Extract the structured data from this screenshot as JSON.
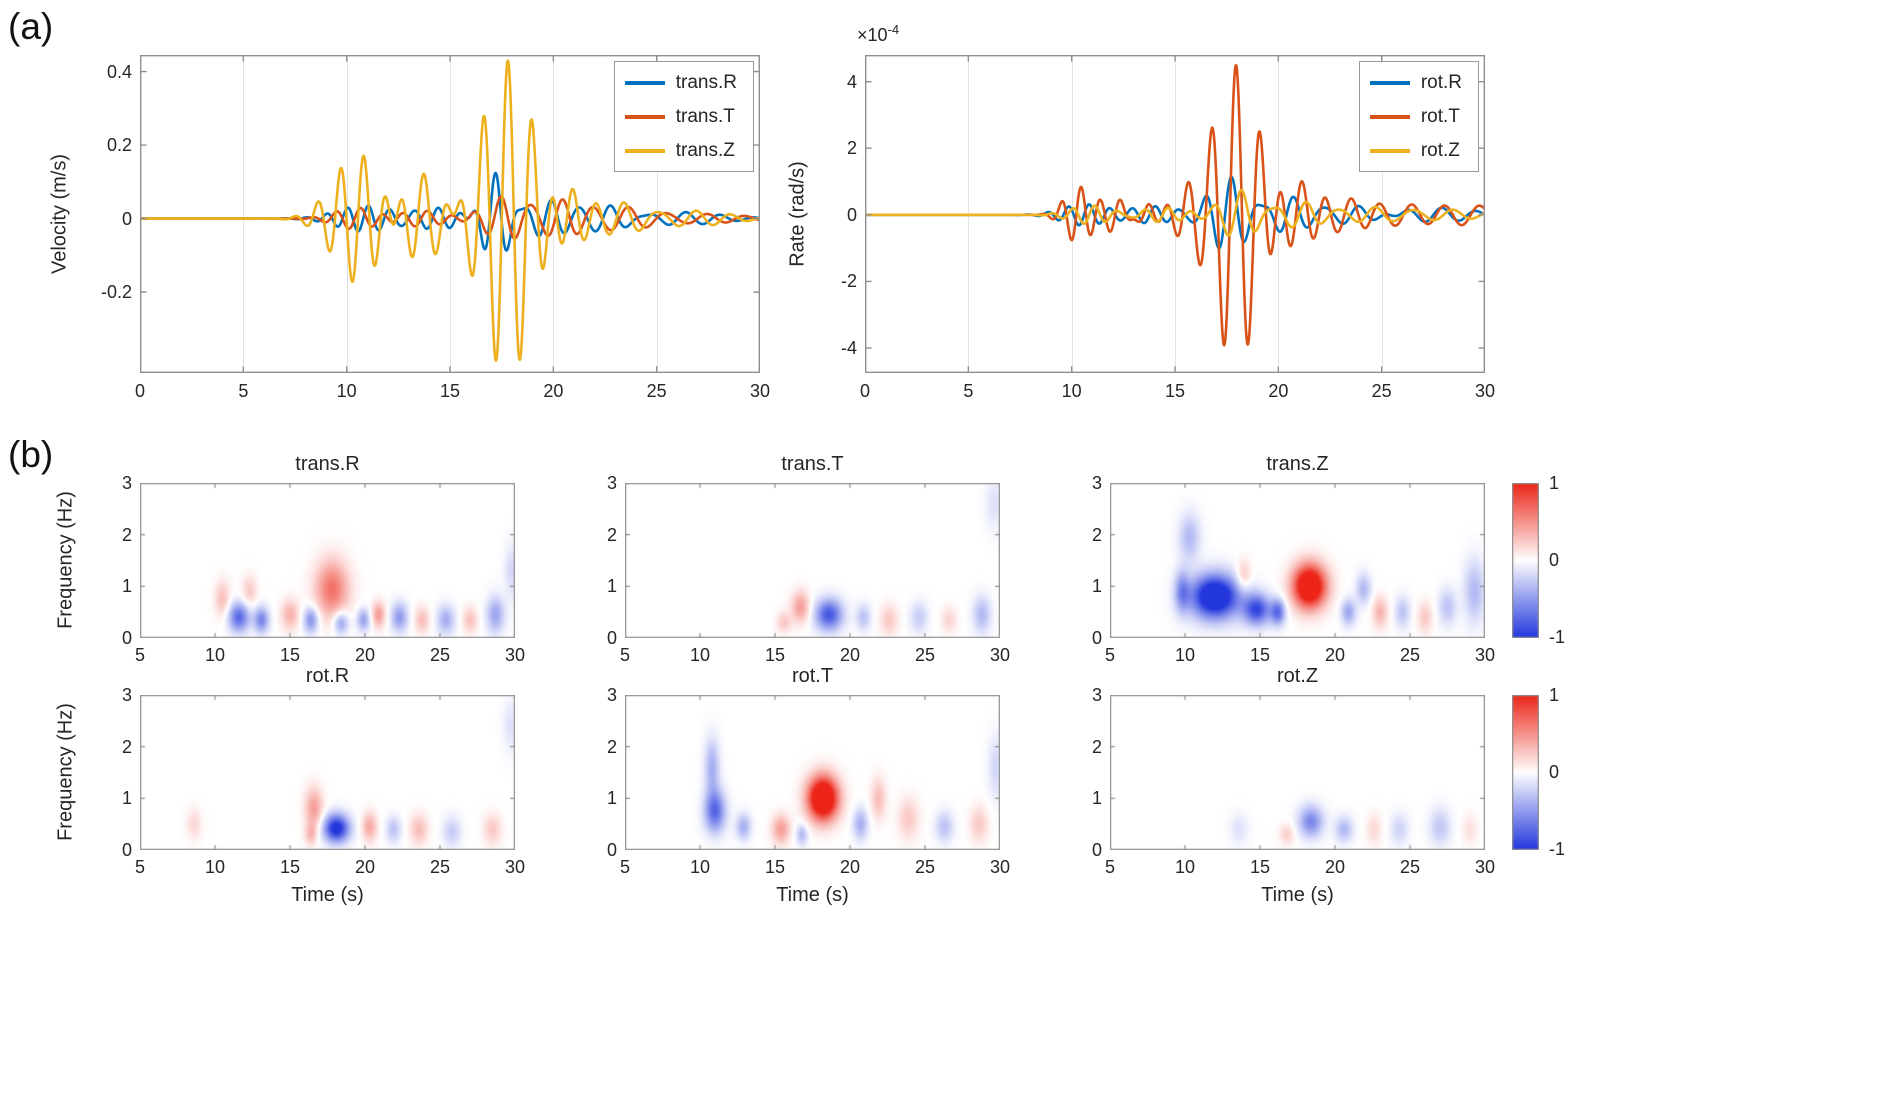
{
  "panels": {
    "a": "(a)",
    "b": "(b)"
  },
  "colors": {
    "axis": "#8f8f8f",
    "grid": "#e2e2e2",
    "text": "#262626",
    "heat_red": "#ec2518",
    "heat_blue": "#2337dd",
    "series_blue": "#0072BD",
    "series_orange": "#D95319",
    "series_yellow": "#EDB120"
  },
  "colorbar": {
    "ticks": [
      "1",
      "0",
      "-1"
    ],
    "range": [
      -1,
      1
    ]
  },
  "chart_data": [
    {
      "type": "line",
      "id": "velocity",
      "ylabel": "Velocity (m/s)",
      "xlim": [
        0,
        30
      ],
      "ylim": [
        -0.42,
        0.445
      ],
      "xticks": [
        0,
        5,
        10,
        15,
        20,
        25,
        30
      ],
      "yticks": [
        -0.2,
        0,
        0.2,
        0.4
      ],
      "grid": "vertical",
      "legend_position": "top-right",
      "series": [
        {
          "name": "trans.R",
          "color": "#0072BD",
          "packets": [
            {
              "t0": 10.8,
              "A": 0.035,
              "f": 1.0,
              "w": 1.8,
              "ph": 0
            },
            {
              "t0": 14.3,
              "A": 0.03,
              "f": 0.9,
              "w": 1.8,
              "ph": 0.8
            },
            {
              "t0": 17.2,
              "A": 0.125,
              "f": 0.9,
              "w": 0.9,
              "ph": 1.5708
            },
            {
              "t0": 19.6,
              "A": 0.05,
              "f": 0.8,
              "w": 1.4,
              "ph": 0
            },
            {
              "t0": 22.5,
              "A": 0.035,
              "f": 0.7,
              "w": 1.6,
              "ph": 0.5
            },
            {
              "t0": 26.0,
              "A": 0.018,
              "f": 0.6,
              "w": 2.8,
              "ph": 0
            }
          ]
        },
        {
          "name": "trans.T",
          "color": "#D95319",
          "packets": [
            {
              "t0": 10.5,
              "A": 0.03,
              "f": 0.85,
              "w": 1.5,
              "ph": 0.6
            },
            {
              "t0": 13.6,
              "A": 0.022,
              "f": 0.8,
              "w": 1.6,
              "ph": 0
            },
            {
              "t0": 17.6,
              "A": 0.06,
              "f": 0.75,
              "w": 1.3,
              "ph": 2.2
            },
            {
              "t0": 20.2,
              "A": 0.05,
              "f": 0.7,
              "w": 1.4,
              "ph": 0.4
            },
            {
              "t0": 23.2,
              "A": 0.03,
              "f": 0.6,
              "w": 2.0,
              "ph": 0
            },
            {
              "t0": 27.0,
              "A": 0.013,
              "f": 0.55,
              "w": 3.0,
              "ph": 0
            }
          ]
        },
        {
          "name": "trans.Z",
          "color": "#EDB120",
          "packets": [
            {
              "t0": 10.6,
              "A": 0.18,
              "f": 0.9,
              "w": 1.7,
              "ph": 0.3
            },
            {
              "t0": 13.6,
              "A": 0.13,
              "f": 0.85,
              "w": 1.6,
              "ph": 0.9
            },
            {
              "t0": 17.8,
              "A": 0.43,
              "f": 0.85,
              "w": 1.8,
              "ph": 1.5708
            },
            {
              "t0": 20.6,
              "A": 0.1,
              "f": 0.8,
              "w": 1.2,
              "ph": 0
            },
            {
              "t0": 23.2,
              "A": 0.04,
              "f": 0.7,
              "w": 1.6,
              "ph": 0.7
            },
            {
              "t0": 26.5,
              "A": 0.022,
              "f": 0.6,
              "w": 2.6,
              "ph": 0
            }
          ]
        }
      ]
    },
    {
      "type": "line",
      "id": "rate",
      "ylabel": "Rate (rad/s)",
      "exp_base": "×10",
      "exp_power": "-4",
      "xlim": [
        0,
        30
      ],
      "ylim": [
        -4.75,
        4.8
      ],
      "xticks": [
        0,
        5,
        10,
        15,
        20,
        25,
        30
      ],
      "yticks": [
        -4,
        -2,
        0,
        2,
        4
      ],
      "grid": "vertical",
      "legend_position": "top-right",
      "series": [
        {
          "name": "rot.R",
          "color": "#0072BD",
          "packets": [
            {
              "t0": 10.6,
              "A": 0.32,
              "f": 1.0,
              "w": 1.5,
              "ph": 0
            },
            {
              "t0": 13.9,
              "A": 0.26,
              "f": 0.9,
              "w": 1.5,
              "ph": 0.7
            },
            {
              "t0": 17.6,
              "A": 1.15,
              "f": 0.8,
              "w": 1.3,
              "ph": 0.9
            },
            {
              "t0": 20.4,
              "A": 0.55,
              "f": 0.75,
              "w": 1.4,
              "ph": 0
            },
            {
              "t0": 23.6,
              "A": 0.3,
              "f": 0.65,
              "w": 1.8,
              "ph": 0.4
            },
            {
              "t0": 27.5,
              "A": 0.22,
              "f": 0.6,
              "w": 2.6,
              "ph": 0
            }
          ]
        },
        {
          "name": "rot.T",
          "color": "#D95319",
          "packets": [
            {
              "t0": 10.3,
              "A": 0.85,
              "f": 1.05,
              "w": 0.9,
              "ph": 0.5
            },
            {
              "t0": 12.1,
              "A": 0.5,
              "f": 1.0,
              "w": 0.9,
              "ph": 0
            },
            {
              "t0": 13.6,
              "A": 0.35,
              "f": 0.95,
              "w": 0.8,
              "ph": 0.6
            },
            {
              "t0": 15.4,
              "A": 0.55,
              "f": 0.9,
              "w": 0.9,
              "ph": 0
            },
            {
              "t0": 17.95,
              "A": 4.5,
              "f": 0.85,
              "w": 1.55,
              "ph": 1.5708
            },
            {
              "t0": 20.9,
              "A": 1.1,
              "f": 0.8,
              "w": 1.2,
              "ph": 0.3
            },
            {
              "t0": 23.2,
              "A": 0.5,
              "f": 0.7,
              "w": 1.6,
              "ph": 0
            },
            {
              "t0": 26.2,
              "A": 0.3,
              "f": 0.6,
              "w": 2.0,
              "ph": 0.5
            },
            {
              "t0": 29.3,
              "A": 0.28,
              "f": 0.55,
              "w": 1.8,
              "ph": 0
            }
          ]
        },
        {
          "name": "rot.Z",
          "color": "#EDB120",
          "packets": [
            {
              "t0": 10.9,
              "A": 0.28,
              "f": 0.95,
              "w": 1.4,
              "ph": 0.3
            },
            {
              "t0": 14.4,
              "A": 0.22,
              "f": 0.9,
              "w": 1.5,
              "ph": 0
            },
            {
              "t0": 18.1,
              "A": 0.75,
              "f": 0.75,
              "w": 1.2,
              "ph": 1.0
            },
            {
              "t0": 21.0,
              "A": 0.4,
              "f": 0.7,
              "w": 1.4,
              "ph": 0
            },
            {
              "t0": 24.4,
              "A": 0.22,
              "f": 0.6,
              "w": 1.8,
              "ph": 0.5
            },
            {
              "t0": 28.0,
              "A": 0.16,
              "f": 0.55,
              "w": 2.4,
              "ph": 0
            }
          ]
        }
      ]
    },
    {
      "type": "heatmap",
      "title": "trans.R",
      "ylabel": "Frequency (Hz)",
      "xlim": [
        5,
        30
      ],
      "ylim": [
        0,
        3
      ],
      "xticks": [
        5,
        10,
        15,
        20,
        25,
        30
      ],
      "yticks": [
        0,
        1,
        2,
        3
      ],
      "colormap": "blue-white-red",
      "clim": [
        -1,
        1
      ],
      "blobs": [
        {
          "t": 10.5,
          "f": 0.75,
          "st": 0.5,
          "sf": 0.35,
          "a": 0.3
        },
        {
          "t": 11.6,
          "f": 0.4,
          "st": 0.7,
          "sf": 0.28,
          "a": -0.75
        },
        {
          "t": 13.1,
          "f": 0.35,
          "st": 0.5,
          "sf": 0.25,
          "a": -0.6
        },
        {
          "t": 12.3,
          "f": 0.9,
          "st": 0.5,
          "sf": 0.3,
          "a": 0.25
        },
        {
          "t": 15.0,
          "f": 0.45,
          "st": 0.6,
          "sf": 0.3,
          "a": 0.35
        },
        {
          "t": 16.4,
          "f": 0.35,
          "st": 0.5,
          "sf": 0.25,
          "a": -0.55
        },
        {
          "t": 17.8,
          "f": 0.95,
          "st": 1.1,
          "sf": 0.55,
          "a": 0.65
        },
        {
          "t": 18.4,
          "f": 0.3,
          "st": 0.5,
          "sf": 0.22,
          "a": -0.5
        },
        {
          "t": 19.9,
          "f": 0.35,
          "st": 0.45,
          "sf": 0.22,
          "a": -0.45
        },
        {
          "t": 20.9,
          "f": 0.45,
          "st": 0.45,
          "sf": 0.25,
          "a": 0.45
        },
        {
          "t": 22.3,
          "f": 0.4,
          "st": 0.55,
          "sf": 0.28,
          "a": -0.5
        },
        {
          "t": 23.8,
          "f": 0.35,
          "st": 0.5,
          "sf": 0.25,
          "a": 0.3
        },
        {
          "t": 25.4,
          "f": 0.35,
          "st": 0.6,
          "sf": 0.28,
          "a": -0.4
        },
        {
          "t": 27.0,
          "f": 0.35,
          "st": 0.5,
          "sf": 0.25,
          "a": 0.28
        },
        {
          "t": 28.7,
          "f": 0.45,
          "st": 0.6,
          "sf": 0.35,
          "a": -0.45
        },
        {
          "t": 29.8,
          "f": 1.3,
          "st": 0.5,
          "sf": 0.5,
          "a": -0.2
        }
      ]
    },
    {
      "type": "heatmap",
      "title": "trans.T",
      "xlim": [
        5,
        30
      ],
      "ylim": [
        0,
        3
      ],
      "xticks": [
        5,
        10,
        15,
        20,
        25,
        30
      ],
      "yticks": [
        0,
        1,
        2,
        3
      ],
      "colormap": "blue-white-red",
      "clim": [
        -1,
        1
      ],
      "blobs": [
        {
          "t": 15.6,
          "f": 0.3,
          "st": 0.5,
          "sf": 0.2,
          "a": 0.25
        },
        {
          "t": 16.7,
          "f": 0.6,
          "st": 0.6,
          "sf": 0.3,
          "a": 0.45
        },
        {
          "t": 18.6,
          "f": 0.45,
          "st": 0.9,
          "sf": 0.3,
          "a": -0.85
        },
        {
          "t": 20.9,
          "f": 0.4,
          "st": 0.5,
          "sf": 0.25,
          "a": -0.3
        },
        {
          "t": 22.6,
          "f": 0.35,
          "st": 0.6,
          "sf": 0.3,
          "a": 0.25
        },
        {
          "t": 24.6,
          "f": 0.4,
          "st": 0.6,
          "sf": 0.3,
          "a": -0.25
        },
        {
          "t": 26.6,
          "f": 0.35,
          "st": 0.5,
          "sf": 0.25,
          "a": 0.2
        },
        {
          "t": 28.8,
          "f": 0.45,
          "st": 0.6,
          "sf": 0.35,
          "a": -0.35
        },
        {
          "t": 29.6,
          "f": 2.6,
          "st": 0.6,
          "sf": 0.5,
          "a": -0.15
        }
      ]
    },
    {
      "type": "heatmap",
      "title": "trans.Z",
      "xlim": [
        5,
        30
      ],
      "ylim": [
        0,
        3
      ],
      "xticks": [
        5,
        10,
        15,
        20,
        25,
        30
      ],
      "yticks": [
        0,
        1,
        2,
        3
      ],
      "colormap": "blue-white-red",
      "clim": [
        -1,
        1
      ],
      "blobs": [
        {
          "t": 9.8,
          "f": 0.9,
          "st": 0.5,
          "sf": 0.4,
          "a": -0.5
        },
        {
          "t": 12.0,
          "f": 0.8,
          "st": 1.6,
          "sf": 0.42,
          "a": -1.4
        },
        {
          "t": 14.8,
          "f": 0.55,
          "st": 0.9,
          "sf": 0.3,
          "a": -0.9
        },
        {
          "t": 16.2,
          "f": 0.5,
          "st": 0.5,
          "sf": 0.25,
          "a": -0.7
        },
        {
          "t": 10.3,
          "f": 1.95,
          "st": 0.7,
          "sf": 0.45,
          "a": -0.35
        },
        {
          "t": 13.9,
          "f": 1.2,
          "st": 0.5,
          "sf": 0.3,
          "a": 0.3
        },
        {
          "t": 18.3,
          "f": 1.0,
          "st": 1.1,
          "sf": 0.42,
          "a": 1.5
        },
        {
          "t": 20.9,
          "f": 0.5,
          "st": 0.5,
          "sf": 0.25,
          "a": -0.45
        },
        {
          "t": 21.9,
          "f": 0.95,
          "st": 0.5,
          "sf": 0.3,
          "a": -0.35
        },
        {
          "t": 23.0,
          "f": 0.5,
          "st": 0.5,
          "sf": 0.3,
          "a": 0.35
        },
        {
          "t": 24.5,
          "f": 0.5,
          "st": 0.5,
          "sf": 0.3,
          "a": -0.3
        },
        {
          "t": 26.0,
          "f": 0.4,
          "st": 0.5,
          "sf": 0.3,
          "a": 0.25
        },
        {
          "t": 27.5,
          "f": 0.6,
          "st": 0.6,
          "sf": 0.35,
          "a": -0.3
        },
        {
          "t": 29.3,
          "f": 0.9,
          "st": 0.7,
          "sf": 0.6,
          "a": -0.35
        }
      ]
    },
    {
      "type": "heatmap",
      "title": "rot.R",
      "ylabel": "Frequency (Hz)",
      "xlabel": "Time (s)",
      "xlim": [
        5,
        30
      ],
      "ylim": [
        0,
        3
      ],
      "xticks": [
        5,
        10,
        15,
        20,
        25,
        30
      ],
      "yticks": [
        0,
        1,
        2,
        3
      ],
      "colormap": "blue-white-red",
      "clim": [
        -1,
        1
      ],
      "blobs": [
        {
          "t": 8.6,
          "f": 0.5,
          "st": 0.5,
          "sf": 0.3,
          "a": 0.18
        },
        {
          "t": 16.6,
          "f": 0.8,
          "st": 0.6,
          "sf": 0.4,
          "a": 0.45
        },
        {
          "t": 16.4,
          "f": 0.3,
          "st": 0.4,
          "sf": 0.2,
          "a": 0.3
        },
        {
          "t": 18.1,
          "f": 0.42,
          "st": 0.85,
          "sf": 0.27,
          "a": -1.1
        },
        {
          "t": 20.3,
          "f": 0.45,
          "st": 0.5,
          "sf": 0.28,
          "a": 0.4
        },
        {
          "t": 21.9,
          "f": 0.4,
          "st": 0.5,
          "sf": 0.25,
          "a": -0.3
        },
        {
          "t": 23.6,
          "f": 0.4,
          "st": 0.6,
          "sf": 0.3,
          "a": 0.3
        },
        {
          "t": 25.8,
          "f": 0.35,
          "st": 0.6,
          "sf": 0.3,
          "a": -0.25
        },
        {
          "t": 28.5,
          "f": 0.4,
          "st": 0.6,
          "sf": 0.3,
          "a": 0.25
        },
        {
          "t": 29.7,
          "f": 2.4,
          "st": 0.5,
          "sf": 0.5,
          "a": -0.15
        }
      ]
    },
    {
      "type": "heatmap",
      "title": "rot.T",
      "xlabel": "Time (s)",
      "xlim": [
        5,
        30
      ],
      "ylim": [
        0,
        3
      ],
      "xticks": [
        5,
        10,
        15,
        20,
        25,
        30
      ],
      "yticks": [
        0,
        1,
        2,
        3
      ],
      "colormap": "blue-white-red",
      "clim": [
        -1,
        1
      ],
      "blobs": [
        {
          "t": 11.0,
          "f": 0.75,
          "st": 0.7,
          "sf": 0.4,
          "a": -0.75
        },
        {
          "t": 10.8,
          "f": 1.6,
          "st": 0.5,
          "sf": 0.55,
          "a": -0.4
        },
        {
          "t": 12.9,
          "f": 0.45,
          "st": 0.5,
          "sf": 0.25,
          "a": -0.4
        },
        {
          "t": 15.4,
          "f": 0.4,
          "st": 0.6,
          "sf": 0.28,
          "a": 0.45
        },
        {
          "t": 16.8,
          "f": 0.3,
          "st": 0.4,
          "sf": 0.2,
          "a": -0.35
        },
        {
          "t": 18.2,
          "f": 1.0,
          "st": 1.0,
          "sf": 0.42,
          "a": 1.6
        },
        {
          "t": 20.7,
          "f": 0.5,
          "st": 0.5,
          "sf": 0.3,
          "a": -0.4
        },
        {
          "t": 21.9,
          "f": 1.0,
          "st": 0.5,
          "sf": 0.4,
          "a": 0.3
        },
        {
          "t": 23.9,
          "f": 0.6,
          "st": 0.7,
          "sf": 0.4,
          "a": 0.25
        },
        {
          "t": 26.3,
          "f": 0.45,
          "st": 0.6,
          "sf": 0.3,
          "a": -0.3
        },
        {
          "t": 28.6,
          "f": 0.5,
          "st": 0.6,
          "sf": 0.35,
          "a": 0.25
        },
        {
          "t": 29.7,
          "f": 1.6,
          "st": 0.5,
          "sf": 0.6,
          "a": -0.2
        }
      ]
    },
    {
      "type": "heatmap",
      "title": "rot.Z",
      "xlabel": "Time (s)",
      "xlim": [
        5,
        30
      ],
      "ylim": [
        0,
        3
      ],
      "xticks": [
        5,
        10,
        15,
        20,
        25,
        30
      ],
      "yticks": [
        0,
        1,
        2,
        3
      ],
      "colormap": "blue-white-red",
      "clim": [
        -1,
        1
      ],
      "blobs": [
        {
          "t": 13.6,
          "f": 0.4,
          "st": 0.6,
          "sf": 0.3,
          "a": -0.15
        },
        {
          "t": 16.8,
          "f": 0.3,
          "st": 0.5,
          "sf": 0.2,
          "a": 0.22
        },
        {
          "t": 18.4,
          "f": 0.55,
          "st": 0.8,
          "sf": 0.3,
          "a": -0.6
        },
        {
          "t": 20.6,
          "f": 0.4,
          "st": 0.6,
          "sf": 0.25,
          "a": -0.35
        },
        {
          "t": 22.6,
          "f": 0.4,
          "st": 0.5,
          "sf": 0.3,
          "a": 0.18
        },
        {
          "t": 24.3,
          "f": 0.4,
          "st": 0.6,
          "sf": 0.3,
          "a": -0.22
        },
        {
          "t": 27.0,
          "f": 0.45,
          "st": 0.7,
          "sf": 0.35,
          "a": -0.28
        },
        {
          "t": 29.0,
          "f": 0.4,
          "st": 0.5,
          "sf": 0.3,
          "a": 0.14
        }
      ]
    }
  ]
}
